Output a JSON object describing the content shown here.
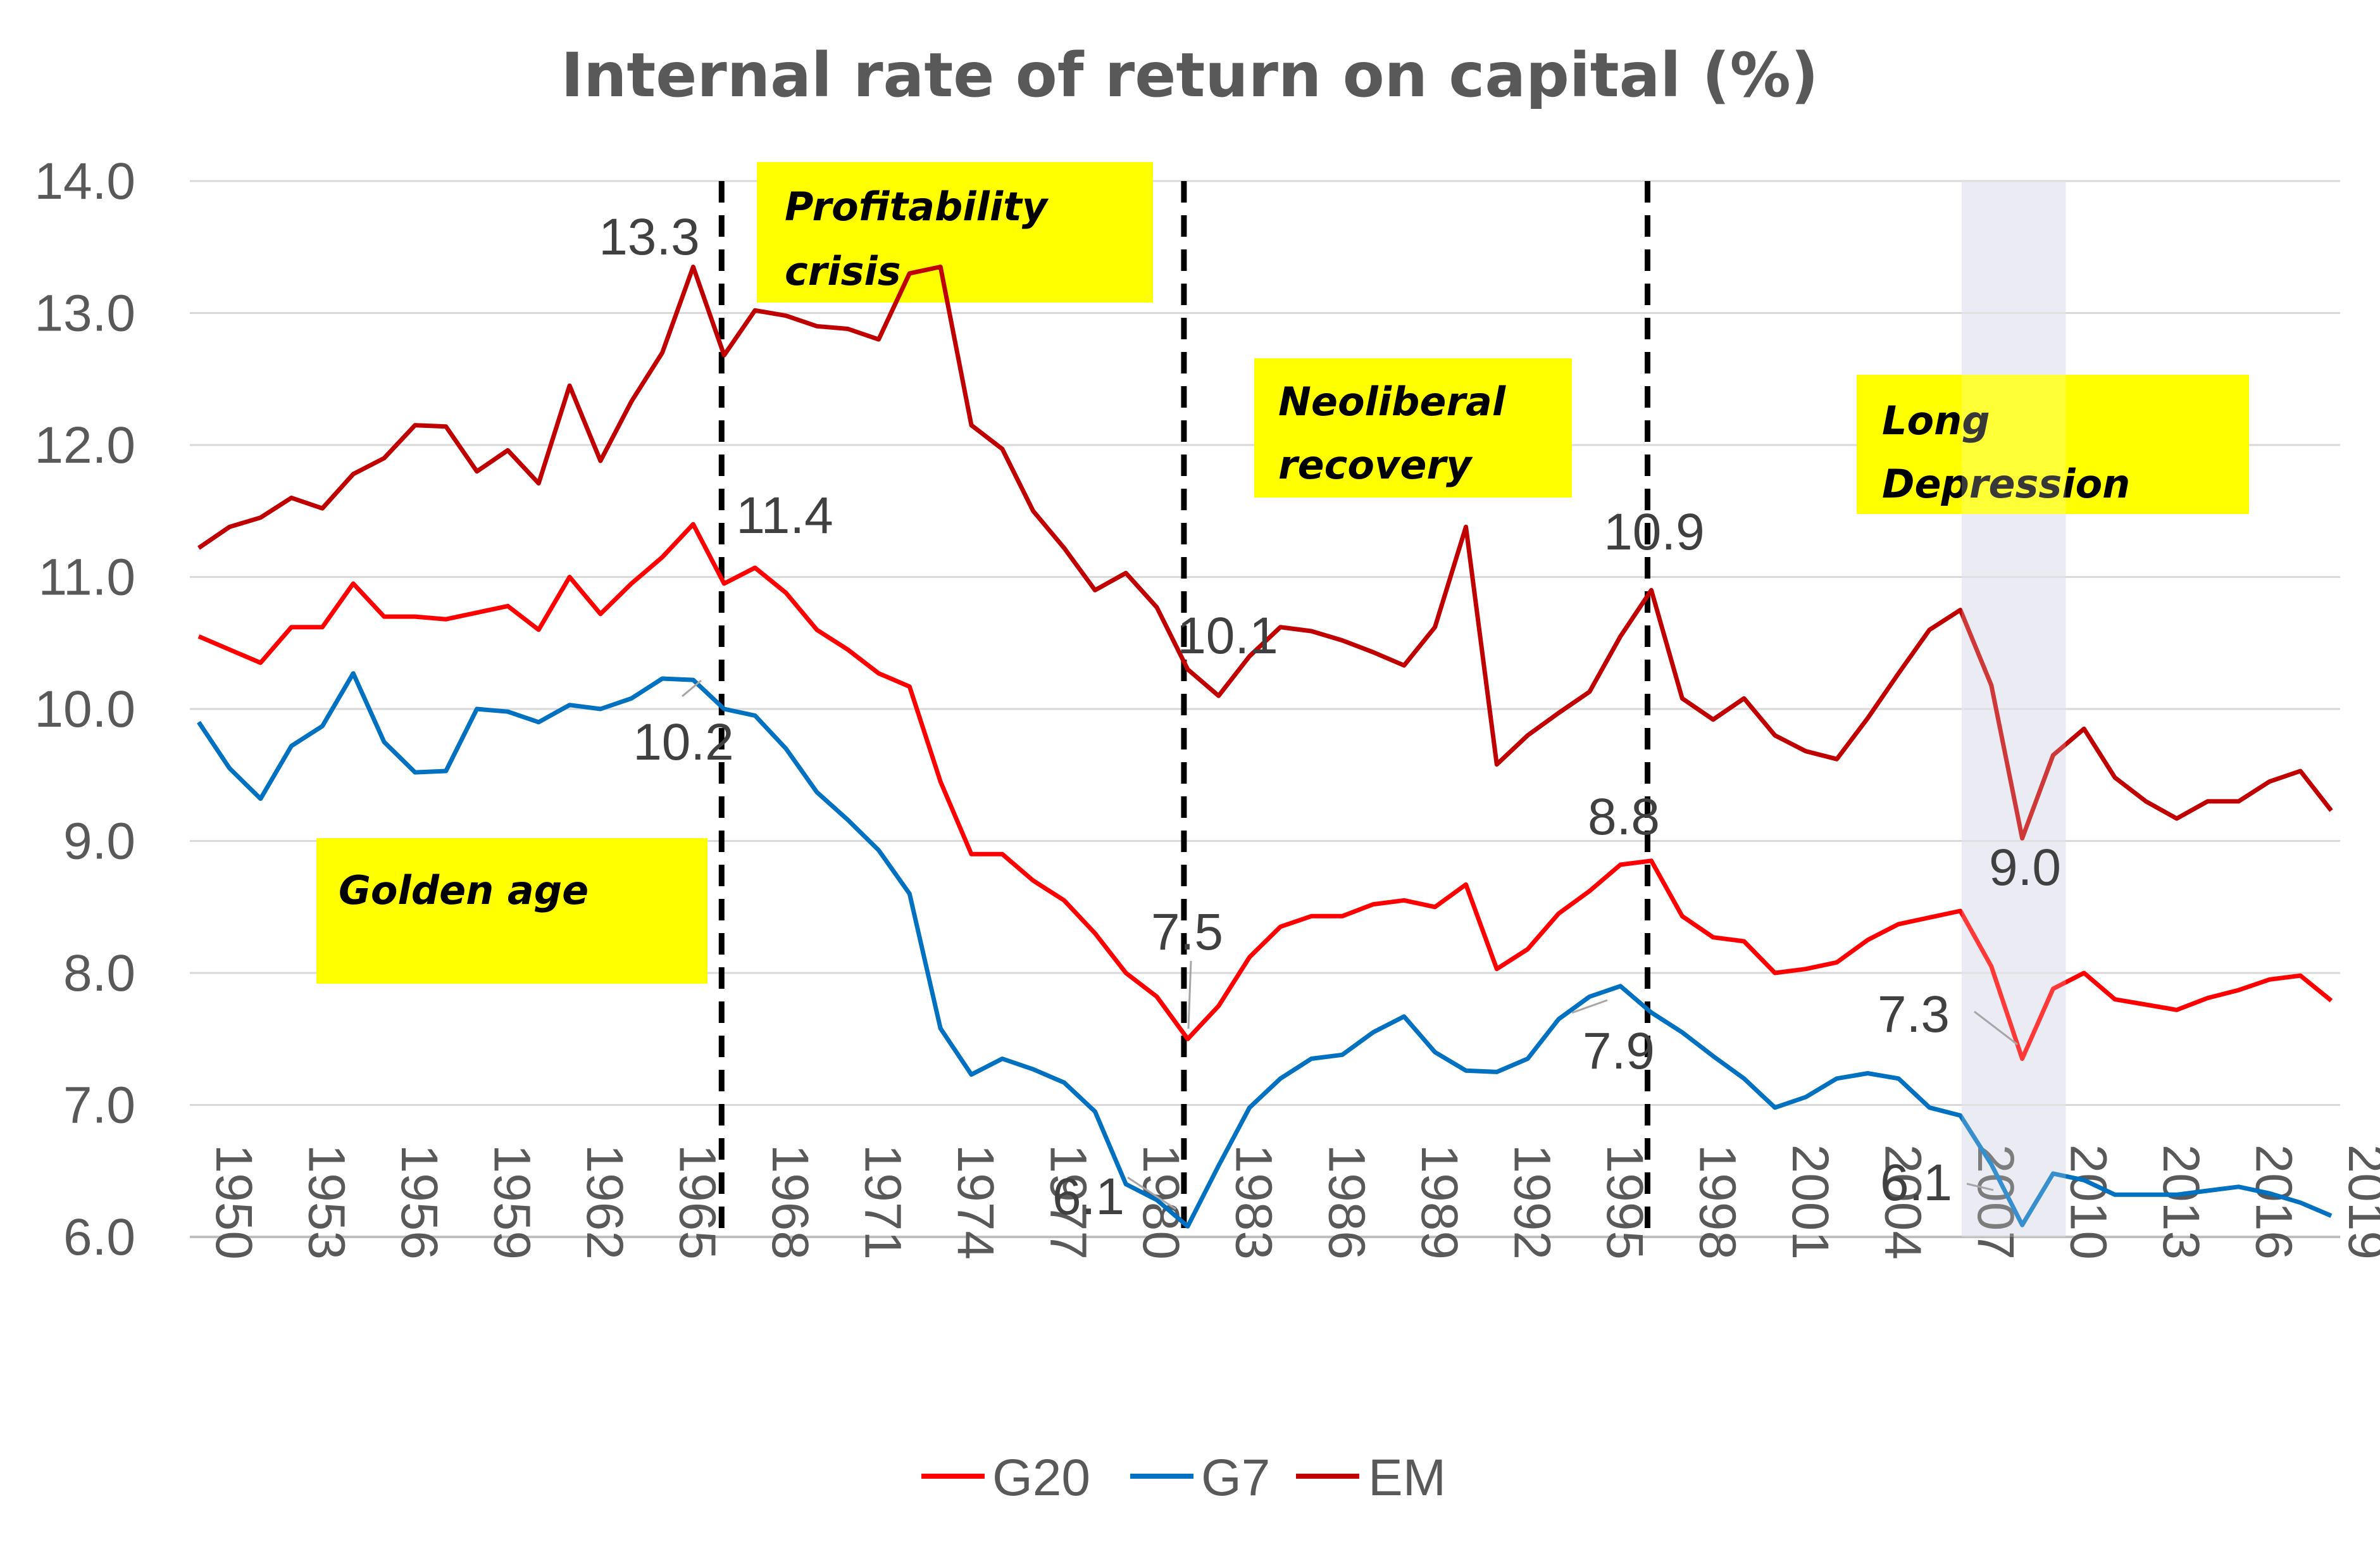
{
  "chart_data": {
    "type": "line",
    "title": "Internal rate of return on capital (%)",
    "xlabel": "",
    "ylabel": "",
    "ylim": [
      6.0,
      14.0
    ],
    "yticks": [
      "6.0",
      "7.0",
      "8.0",
      "9.0",
      "10.0",
      "11.0",
      "12.0",
      "13.0",
      "14.0"
    ],
    "xticks": [
      "1950",
      "1953",
      "1956",
      "1959",
      "1962",
      "1965",
      "1968",
      "1971",
      "1974",
      "1977",
      "1980",
      "1983",
      "1986",
      "1989",
      "1992",
      "1995",
      "1998",
      "2001",
      "2004",
      "2007",
      "2010",
      "2013",
      "2016",
      "2019"
    ],
    "grid": true,
    "legend_position": "bottom",
    "years": [
      1950,
      1951,
      1952,
      1953,
      1954,
      1955,
      1956,
      1957,
      1958,
      1959,
      1960,
      1961,
      1962,
      1963,
      1964,
      1965,
      1966,
      1967,
      1968,
      1969,
      1970,
      1971,
      1972,
      1973,
      1974,
      1975,
      1976,
      1977,
      1978,
      1979,
      1980,
      1981,
      1982,
      1983,
      1984,
      1985,
      1986,
      1987,
      1988,
      1989,
      1990,
      1991,
      1992,
      1993,
      1994,
      1995,
      1996,
      1997,
      1998,
      1999,
      2000,
      2001,
      2002,
      2003,
      2004,
      2005,
      2006,
      2007,
      2008,
      2009,
      2010,
      2011,
      2012,
      2013,
      2014,
      2015,
      2016,
      2017,
      2018,
      2019
    ],
    "series": [
      {
        "name": "G20",
        "color": "#ff0000",
        "values": [
          10.55,
          10.45,
          10.35,
          10.62,
          10.62,
          10.95,
          10.7,
          10.7,
          10.68,
          10.73,
          10.78,
          10.6,
          11.0,
          10.72,
          10.95,
          11.15,
          11.4,
          10.95,
          11.07,
          10.88,
          10.6,
          10.45,
          10.27,
          10.17,
          9.45,
          8.9,
          8.9,
          8.7,
          8.55,
          8.3,
          8.0,
          7.82,
          7.5,
          7.75,
          8.12,
          8.35,
          8.43,
          8.43,
          8.52,
          8.55,
          8.5,
          8.67,
          8.03,
          8.18,
          8.45,
          8.62,
          8.82,
          8.85,
          8.43,
          8.27,
          8.24,
          8.0,
          8.03,
          8.08,
          8.25,
          8.37,
          8.42,
          8.47,
          8.05,
          7.35,
          7.88,
          8.0,
          7.8,
          7.76,
          7.72,
          7.81,
          7.87,
          7.95,
          7.98,
          7.79
        ]
      },
      {
        "name": "G7",
        "color": "#0070c0",
        "values": [
          9.9,
          9.55,
          9.32,
          9.72,
          9.87,
          10.27,
          9.75,
          9.52,
          9.53,
          10.0,
          9.98,
          9.9,
          10.03,
          10.0,
          10.08,
          10.23,
          10.22,
          10.0,
          9.95,
          9.7,
          9.37,
          9.16,
          8.93,
          8.6,
          7.58,
          7.23,
          7.35,
          7.27,
          7.17,
          6.95,
          6.4,
          6.28,
          6.08,
          6.54,
          6.98,
          7.2,
          7.35,
          7.38,
          7.55,
          7.67,
          7.4,
          7.26,
          7.25,
          7.35,
          7.65,
          7.82,
          7.9,
          7.7,
          7.55,
          7.37,
          7.2,
          6.98,
          7.06,
          7.2,
          7.24,
          7.2,
          6.98,
          6.92,
          6.55,
          6.09,
          6.48,
          6.43,
          6.32,
          6.32,
          6.32,
          6.35,
          6.38,
          6.33,
          6.26,
          6.16
        ]
      },
      {
        "name": "EM",
        "color": "#c00000",
        "values": [
          11.22,
          11.38,
          11.45,
          11.6,
          11.52,
          11.78,
          11.9,
          12.15,
          12.14,
          11.8,
          11.96,
          11.71,
          12.45,
          11.88,
          12.33,
          12.7,
          13.35,
          12.68,
          13.02,
          12.98,
          12.9,
          12.88,
          12.8,
          13.3,
          13.35,
          12.15,
          11.97,
          11.5,
          11.22,
          10.9,
          11.03,
          10.77,
          10.3,
          10.1,
          10.4,
          10.62,
          10.59,
          10.52,
          10.43,
          10.33,
          10.62,
          11.38,
          9.58,
          9.8,
          9.97,
          10.13,
          10.55,
          10.9,
          10.08,
          9.92,
          10.08,
          9.8,
          9.68,
          9.62,
          9.93,
          10.27,
          10.6,
          10.75,
          10.18,
          9.02,
          9.65,
          9.85,
          9.48,
          9.3,
          9.17,
          9.3,
          9.3,
          9.45,
          9.53,
          9.23
        ]
      }
    ],
    "annotations": {
      "data_labels": [
        "13.3",
        "11.4",
        "10.2",
        "10.1",
        "7.5",
        "6.1",
        "10.9",
        "8.8",
        "7.9",
        "9.0",
        "7.3",
        "6.1"
      ],
      "vertical_markers": [
        "1967",
        "1982",
        "1997"
      ],
      "shaded_period": [
        "2007",
        "2010"
      ],
      "eras": [
        "Golden age",
        "Profitability crisis",
        "Neoliberal recovery",
        "Long Depression"
      ]
    }
  },
  "labels": {
    "l13_3": "13.3",
    "l11_4": "11.4",
    "l10_2": "10.2",
    "l10_1": "10.1",
    "l7_5": "7.5",
    "l6_1a": "6.1",
    "l10_9": "10.9",
    "l8_8": "8.8",
    "l7_9": "7.9",
    "l9_0": "9.0",
    "l7_3": "7.3",
    "l6_1b": "6.1"
  },
  "eras": {
    "golden": "Golden age",
    "profit1": "Profitability",
    "profit2": "crisis",
    "neo1": "Neoliberal",
    "neo2": "recovery",
    "long1": "Long",
    "long2": "Depression"
  },
  "legend": {
    "g20": "G20",
    "g7": "G7",
    "em": "EM"
  }
}
